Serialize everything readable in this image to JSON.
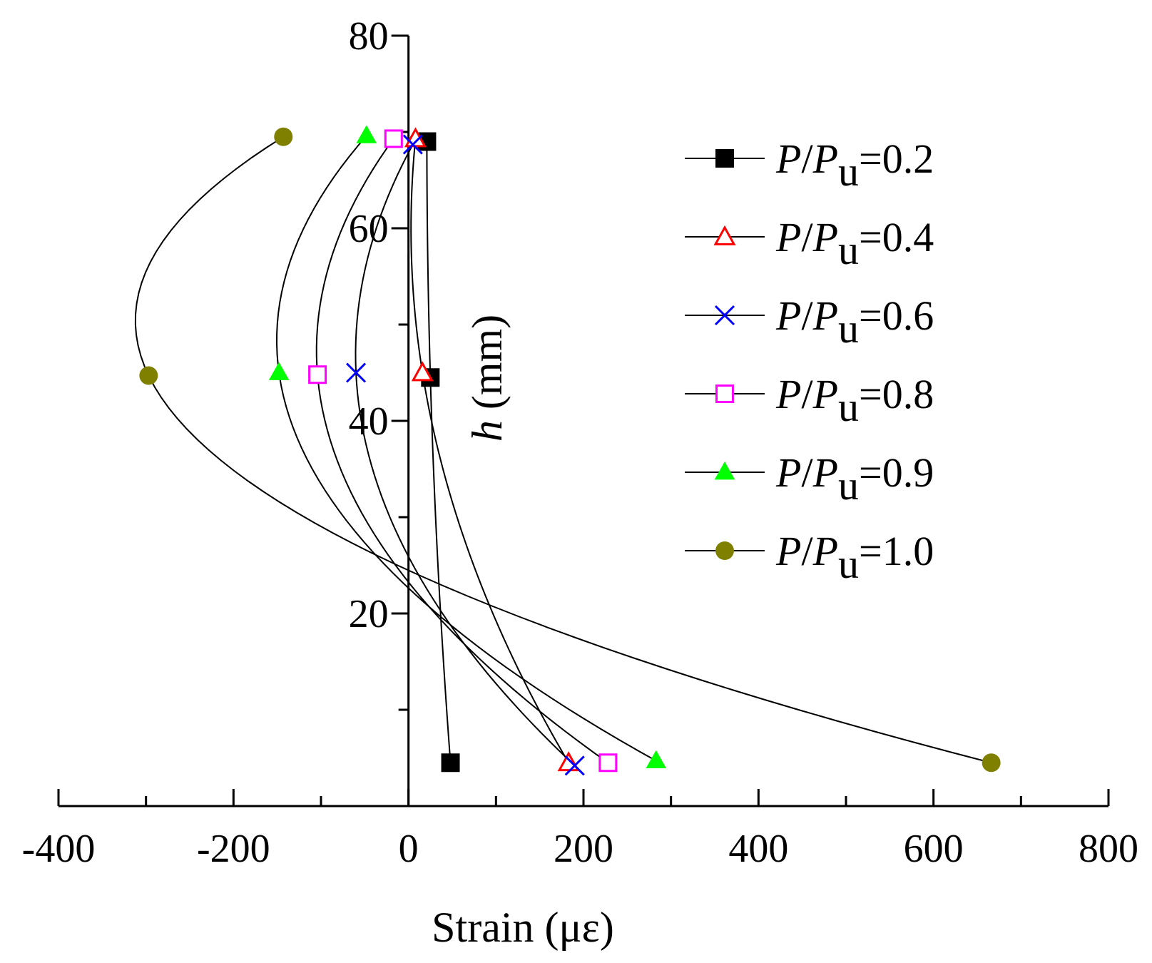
{
  "chart_data": {
    "type": "line",
    "title": "",
    "xlabel": "Strain (με)",
    "ylabel_italic": "h",
    "ylabel_rest": " (mm)",
    "xlim": [
      -400,
      800
    ],
    "ylim": [
      0,
      80
    ],
    "x_ticks": [
      -400,
      -200,
      0,
      200,
      400,
      600,
      800
    ],
    "x_tick_labels": [
      "-400",
      "-200",
      "0",
      "200",
      "400",
      "600",
      "800"
    ],
    "y_ticks": [
      20,
      40,
      60,
      80
    ],
    "y_tick_labels": [
      "20",
      "40",
      "60",
      "80"
    ],
    "legend_position": "right",
    "series": [
      {
        "name": "P/Pu=0.2",
        "legend_var": "P",
        "legend_slash": "/",
        "legend_base": "P",
        "legend_sub": "u",
        "legend_value": "=0.2",
        "marker": "filled-square",
        "color": "#000000",
        "points": [
          [
            21,
            69
          ],
          [
            25,
            44.5
          ],
          [
            48,
            4.5
          ]
        ]
      },
      {
        "name": "P/Pu=0.4",
        "legend_var": "P",
        "legend_slash": "/",
        "legend_base": "P",
        "legend_sub": "u",
        "legend_value": "=0.4",
        "marker": "open-triangle",
        "color": "#ff0000",
        "points": [
          [
            8,
            69.3
          ],
          [
            16,
            45
          ],
          [
            183,
            4.5
          ]
        ]
      },
      {
        "name": "P/Pu=0.6",
        "legend_var": "P",
        "legend_slash": "/",
        "legend_base": "P",
        "legend_sub": "u",
        "legend_value": "=0.6",
        "marker": "x",
        "color": "#0000ff",
        "points": [
          [
            5,
            68.7
          ],
          [
            -60,
            45
          ],
          [
            190,
            4.2
          ]
        ]
      },
      {
        "name": "P/Pu=0.8",
        "legend_var": "P",
        "legend_slash": "/",
        "legend_base": "P",
        "legend_sub": "u",
        "legend_value": "=0.8",
        "marker": "open-square",
        "color": "#ff00ff",
        "points": [
          [
            -17,
            69.3
          ],
          [
            -104,
            44.8
          ],
          [
            228,
            4.5
          ]
        ]
      },
      {
        "name": "P/Pu=0.9",
        "legend_var": "P",
        "legend_slash": "/",
        "legend_base": "P",
        "legend_sub": "u",
        "legend_value": "=0.9",
        "marker": "filled-triangle",
        "color": "#00ff00",
        "points": [
          [
            -48,
            69.6
          ],
          [
            -148,
            45
          ],
          [
            283,
            4.7
          ]
        ]
      },
      {
        "name": "P/Pu=1.0",
        "legend_var": "P",
        "legend_slash": "/",
        "legend_base": "P",
        "legend_sub": "u",
        "legend_value": "=1.0",
        "marker": "filled-circle",
        "color": "#808000",
        "points": [
          [
            -143,
            69.5
          ],
          [
            -297,
            44.7
          ],
          [
            666,
            4.5
          ]
        ]
      }
    ]
  }
}
